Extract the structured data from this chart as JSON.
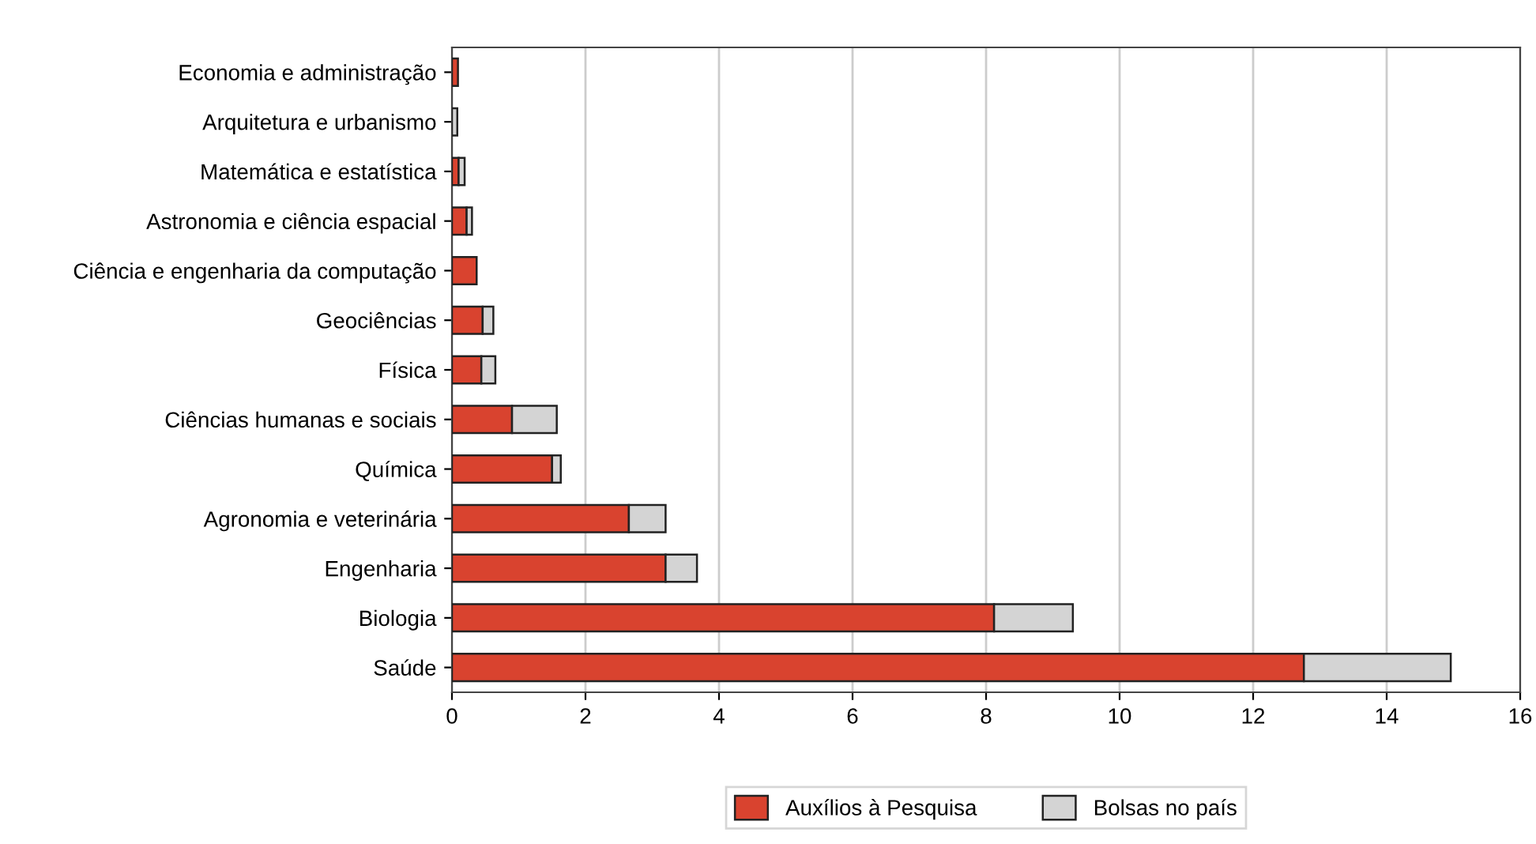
{
  "chart_data": {
    "type": "bar",
    "orientation": "horizontal",
    "stacked": true,
    "categories": [
      "Economia e administração",
      "Arquitetura e urbanismo",
      "Matemática e estatística",
      "Astronomia e ciência espacial",
      "Ciência e engenharia da computação",
      "Geociências",
      "Física",
      "Ciências humanas e sociais",
      "Química",
      "Agronomia e veterinária",
      "Engenharia",
      "Biologia",
      "Saúde"
    ],
    "series": [
      {
        "name": "Auxílios à Pesquisa",
        "color": "#d9432f",
        "values": [
          0.09,
          null,
          0.1,
          0.22,
          0.37,
          0.46,
          0.44,
          0.9,
          1.5,
          2.65,
          3.2,
          8.12,
          12.76
        ]
      },
      {
        "name": "Bolsas no país",
        "color": "#d4d4d4",
        "values": [
          null,
          0.08,
          0.09,
          0.08,
          null,
          0.16,
          0.21,
          0.67,
          0.13,
          0.55,
          0.47,
          1.18,
          2.2
        ]
      }
    ],
    "xlim": [
      0,
      16
    ],
    "xticks": [
      0,
      2,
      4,
      6,
      8,
      10,
      12,
      14,
      16
    ],
    "grid": "x",
    "legend": "bottom"
  }
}
